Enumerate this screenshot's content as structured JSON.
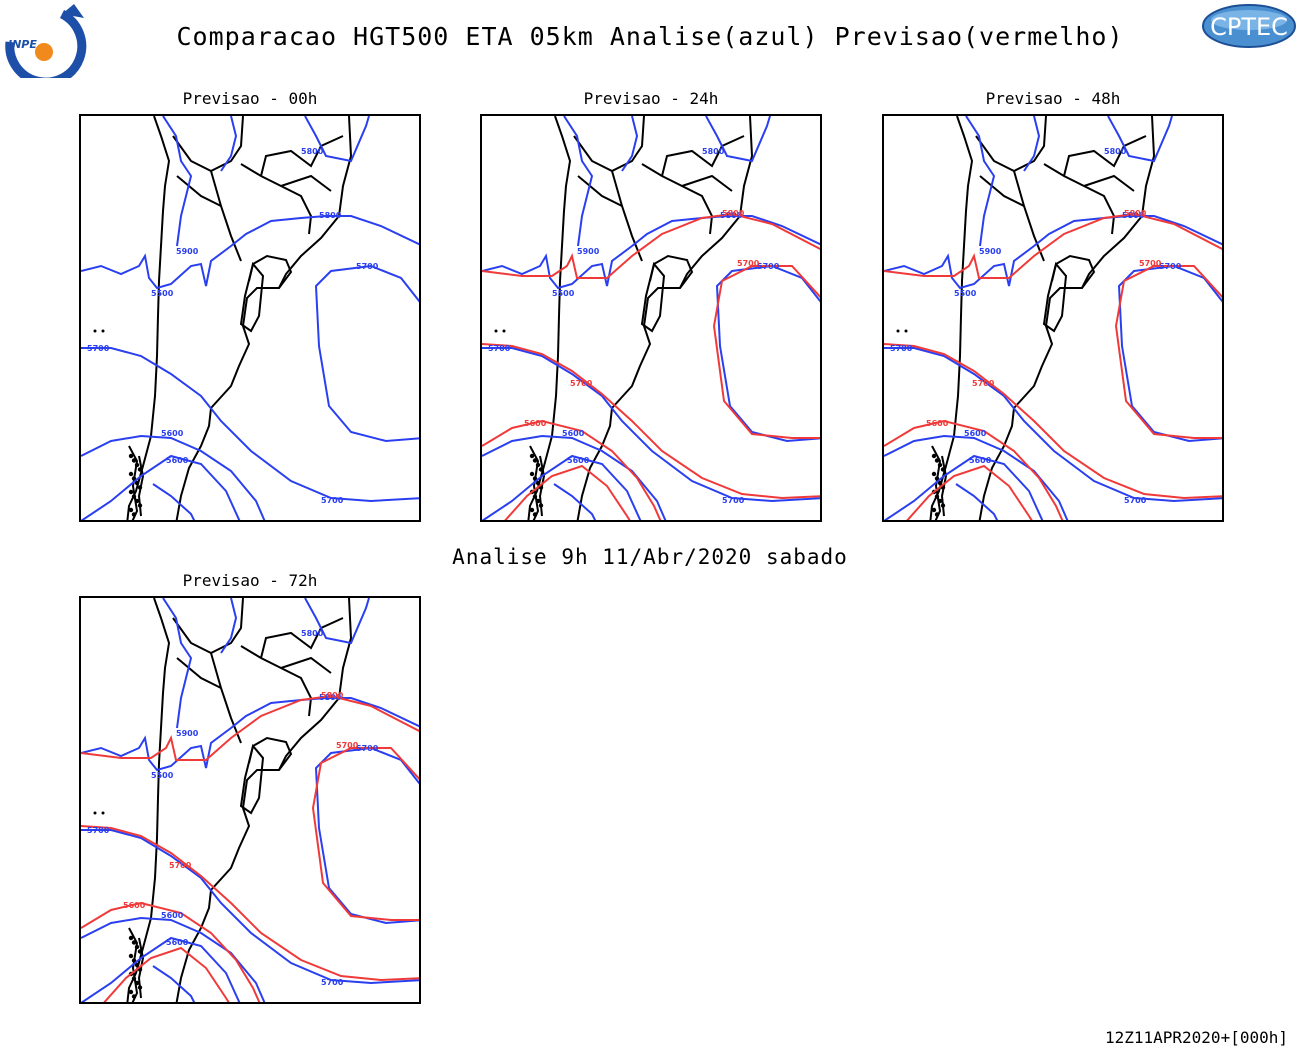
{
  "header": {
    "title": "Comparacao HGT500 ETA 05km Analise(azul) Previsao(vermelho)",
    "logo_left_text": "INPE",
    "logo_right_text": "CPTEC"
  },
  "colors": {
    "analysis": "#2a3ff0",
    "forecast": "#f03a3a",
    "coastline": "#000000"
  },
  "panels": [
    {
      "title": "Previsao - 00h",
      "labels": {
        "a5800": "5800",
        "a5900": "5900",
        "a5700a": "5700",
        "a5700b": "5700",
        "a5600a": "5600",
        "a5600b": "5600",
        "a5500": "5500",
        "a5800b": "5800",
        "a5700c": "5700",
        "f1": "",
        "f2": "",
        "f3": "",
        "f4": ""
      }
    },
    {
      "title": "Previsao - 24h",
      "labels": {
        "a5800": "5800",
        "a5900": "5900",
        "a5700a": "5700",
        "a5700b": "5700",
        "a5600a": "5600",
        "a5600b": "5600",
        "a5500": "5500",
        "a5800b": "5800",
        "a5700c": "5700",
        "f1": "5800",
        "f2": "5700",
        "f3": "5700",
        "f4": "5600"
      }
    },
    {
      "title": "Previsao - 48h",
      "labels": {
        "a5800": "5800",
        "a5900": "5900",
        "a5700a": "5700",
        "a5700b": "5700",
        "a5600a": "5600",
        "a5600b": "5600",
        "a5500": "5500",
        "a5800b": "5800",
        "a5700c": "5700",
        "f1": "5800",
        "f2": "5700",
        "f3": "5700",
        "f4": "5600"
      }
    },
    {
      "title": "Previsao - 72h",
      "labels": {
        "a5800": "5800",
        "a5900": "5900",
        "a5700a": "5700",
        "a5700b": "5700",
        "a5600a": "5600",
        "a5600b": "5600",
        "a5500": "5500",
        "a5800b": "5800",
        "a5700c": "5700",
        "f1": "5800",
        "f2": "5700",
        "f3": "5700",
        "f4": "5600"
      }
    }
  ],
  "analysis_text": "Analise 9h 11/Abr/2020 sabado",
  "footer_text": "12Z11APR2020+[000h]"
}
